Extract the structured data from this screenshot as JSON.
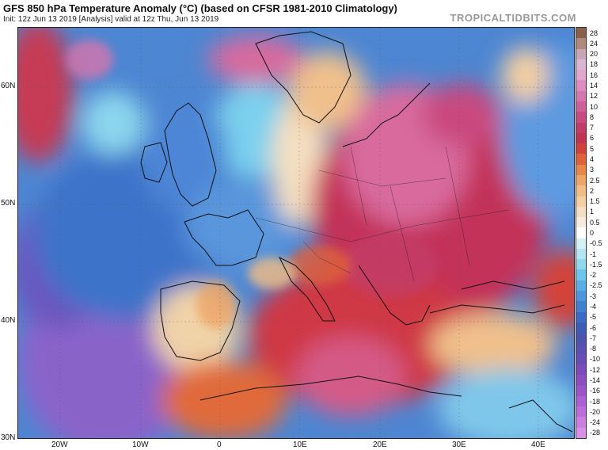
{
  "header": {
    "title": "GFS 850 hPa Temperature Anomaly (°C) (based on CFSR 1981-2010 Climatology)",
    "subtitle": "Init: 12z Jun 13 2019   [Analysis]   valid at 12z Thu, Jun 13 2019",
    "brand": "TROPICALTIDBITS.COM"
  },
  "map": {
    "lat_labels": [
      "60N",
      "50N",
      "40N",
      "30N"
    ],
    "lat_values": [
      60,
      50,
      40,
      30
    ],
    "lon_labels": [
      "20W",
      "10W",
      "0",
      "10E",
      "20E",
      "30E",
      "40E"
    ],
    "lon_values": [
      -20,
      -10,
      0,
      10,
      20,
      30,
      40
    ],
    "lon_range": [
      -27,
      45
    ],
    "lat_range": [
      30,
      65
    ],
    "anomaly_regions": [
      {
        "name": "cold-atlantic-southwest",
        "anomaly": -9,
        "color": "#8a63c9"
      },
      {
        "name": "cool-atlantic-west",
        "anomaly": -4,
        "color": "#3d73c9"
      },
      {
        "name": "cool-british-isles",
        "anomaly": -2.5,
        "color": "#4e86d6"
      },
      {
        "name": "cool-france",
        "anomaly": -2,
        "color": "#5a96dc"
      },
      {
        "name": "cool-scandinavia-sea",
        "anomaly": -1.5,
        "color": "#6fb7e6"
      },
      {
        "name": "warm-iceland-west",
        "anomaly": 6,
        "color": "#c63a55"
      },
      {
        "name": "warm-eastern-europe",
        "anomaly": 8,
        "color": "#c33058"
      },
      {
        "name": "hot-baltics-poland",
        "anomaly": 12,
        "color": "#d86a9e"
      },
      {
        "name": "warm-mediterranean",
        "anomaly": 5,
        "color": "#cf3844"
      },
      {
        "name": "hot-libya",
        "anomaly": 10,
        "color": "#d45a86"
      },
      {
        "name": "mild-iberia",
        "anomaly": 1,
        "color": "#f1d3a8"
      },
      {
        "name": "mild-turkey",
        "anomaly": 2,
        "color": "#f0c08c"
      },
      {
        "name": "cool-russia-east",
        "anomaly": -1.5,
        "color": "#5d9ae0"
      },
      {
        "name": "warm-north-africa-west",
        "anomaly": 4,
        "color": "#e06a3a"
      }
    ]
  },
  "colorbar": {
    "labels": [
      "28",
      "24",
      "20",
      "18",
      "16",
      "14",
      "12",
      "10",
      "8",
      "7",
      "6",
      "5",
      "4",
      "3",
      "2.5",
      "2",
      "1.5",
      "1",
      "0.5",
      "0",
      "-0.5",
      "-1",
      "-1.5",
      "-2",
      "-2.5",
      "-3",
      "-4",
      "-5",
      "-6",
      "-7",
      "-8",
      "-10",
      "-12",
      "-14",
      "-16",
      "-18",
      "-20",
      "-24",
      "-28"
    ],
    "colors": [
      "#8a6048",
      "#b08a78",
      "#c9a6b6",
      "#d9b7d3",
      "#e3a6cf",
      "#dc8cc0",
      "#d676ae",
      "#d0609c",
      "#c94a7f",
      "#c33c68",
      "#c23350",
      "#d3423a",
      "#e0603a",
      "#ea8647",
      "#efa565",
      "#f2bd84",
      "#f3cfa2",
      "#f5dfc0",
      "#f7ecdc",
      "#ffffff",
      "#d4f1f7",
      "#b3e6f2",
      "#8fd8ee",
      "#6cc6ec",
      "#56b0e7",
      "#4a97de",
      "#3f80d4",
      "#3b6bc8",
      "#3d5cb8",
      "#4a55b0",
      "#5a50b2",
      "#6a4cb6",
      "#7b4bbb",
      "#8c4ec3",
      "#9d54cb",
      "#ad5fd3",
      "#bd6ddb",
      "#cc7de2",
      "#db8fe8"
    ]
  }
}
